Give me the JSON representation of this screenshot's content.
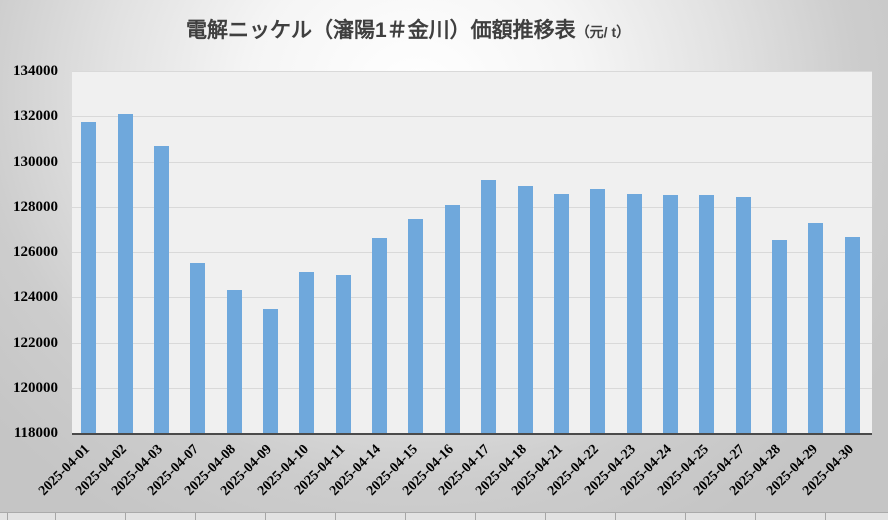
{
  "title": {
    "main": "電解ニッケル（瀋陽1＃金川）価額推移表",
    "unit": "（元/ t）"
  },
  "chart_data": {
    "type": "bar",
    "title": "電解ニッケル（瀋陽1＃金川）価額推移表（元/t）",
    "categories": [
      "2025-04-01",
      "2025-04-02",
      "2025-04-03",
      "2025-04-07",
      "2025-04-08",
      "2025-04-09",
      "2025-04-10",
      "2025-04-11",
      "2025-04-14",
      "2025-04-15",
      "2025-04-16",
      "2025-04-17",
      "2025-04-18",
      "2025-04-21",
      "2025-04-22",
      "2025-04-23",
      "2025-04-24",
      "2025-04-25",
      "2025-04-27",
      "2025-04-28",
      "2025-04-29",
      "2025-04-30"
    ],
    "values": [
      131750,
      132100,
      130700,
      125500,
      124300,
      123500,
      125100,
      125000,
      126600,
      127450,
      128100,
      129200,
      128900,
      128550,
      128800,
      128550,
      128500,
      128500,
      128450,
      126550,
      127300,
      126650
    ],
    "xlabel": "",
    "ylabel": "",
    "ylim": [
      118000,
      134000
    ],
    "ytick_step": 2000,
    "yticks": [
      118000,
      120000,
      122000,
      124000,
      126000,
      128000,
      130000,
      132000,
      134000
    ],
    "bar_color": "#6fa8dc",
    "plot_bg": "#f0f0f0",
    "gridline_color": "#d9d9d9",
    "grid": true,
    "legend": false
  }
}
